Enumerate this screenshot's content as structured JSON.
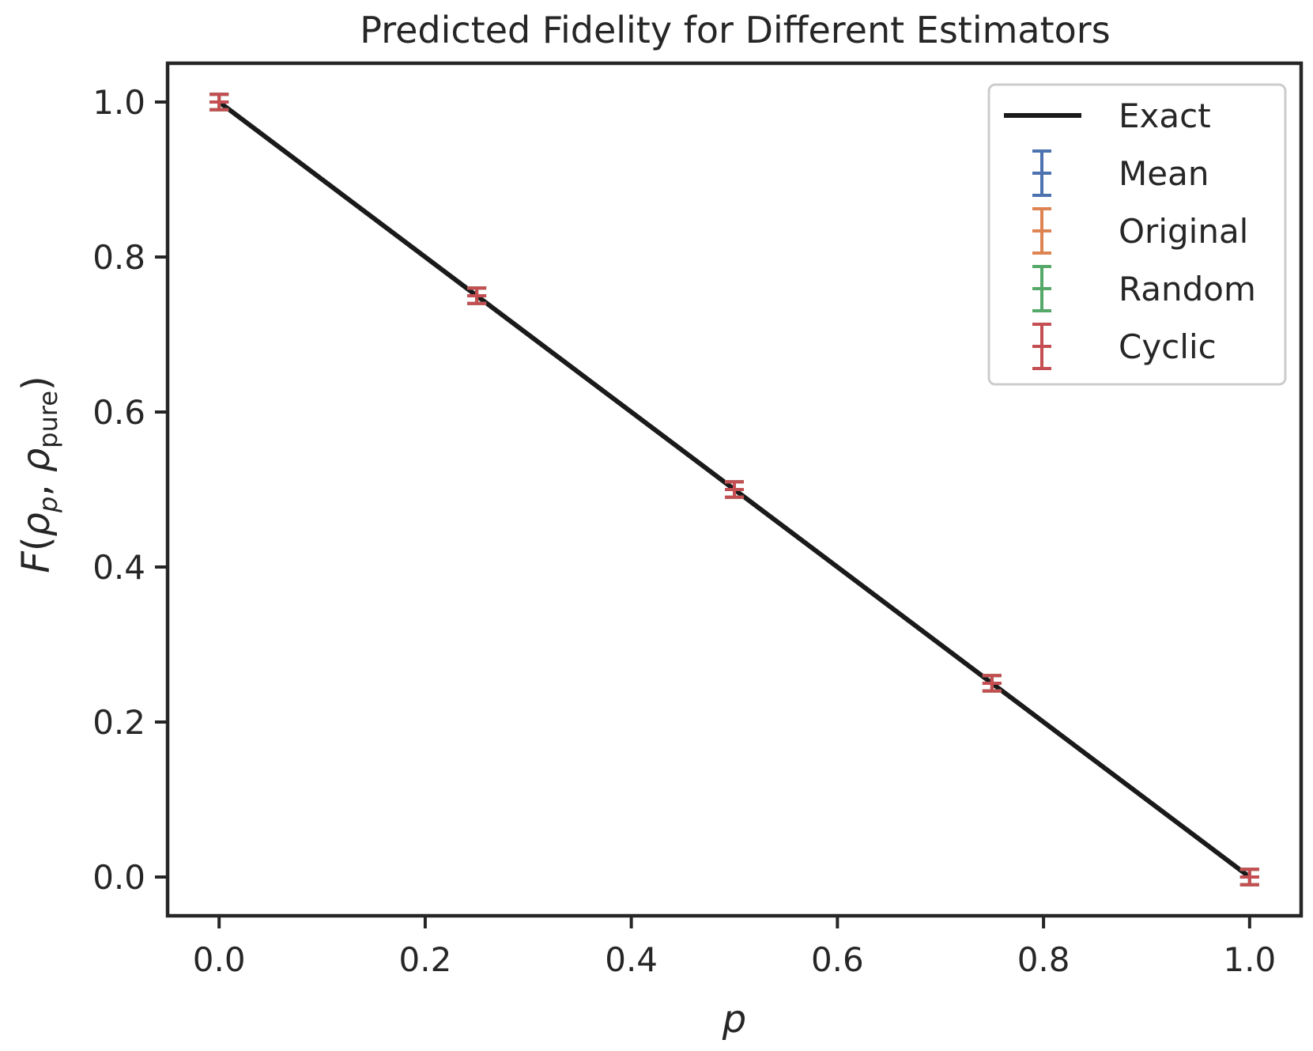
{
  "chart_data": {
    "type": "scatter",
    "title": "Predicted Fidelity for Different Estimators",
    "xlabel": "p",
    "ylabel": {
      "F": "F",
      "open": "(",
      "rho1": "ρ",
      "sub1": "p",
      "comma": ", ",
      "rho2": "ρ",
      "sub2": "pure",
      "close": ")"
    },
    "xlim": [
      -0.05,
      1.05
    ],
    "ylim": [
      -0.05,
      1.05
    ],
    "x_ticks": [
      0.0,
      0.2,
      0.4,
      0.6,
      0.8,
      1.0
    ],
    "x_tick_labels": [
      "0.0",
      "0.2",
      "0.4",
      "0.6",
      "0.8",
      "1.0"
    ],
    "y_ticks": [
      0.0,
      0.2,
      0.4,
      0.6,
      0.8,
      1.0
    ],
    "y_tick_labels": [
      "0.0",
      "0.2",
      "0.4",
      "0.6",
      "0.8",
      "1.0"
    ],
    "grid": false,
    "legend_position": "top-right",
    "exact": {
      "name": "Exact",
      "color": "#1a1a1a",
      "x": [
        0.0,
        1.0
      ],
      "y": [
        1.0,
        0.0
      ]
    },
    "series": [
      {
        "name": "Mean",
        "color": "#4c72b0",
        "x": [
          0.0,
          0.25,
          0.5,
          0.75,
          1.0
        ],
        "y": [
          1.0,
          0.75,
          0.5,
          0.25,
          0.0
        ],
        "err": [
          0.01,
          0.01,
          0.01,
          0.01,
          0.01
        ]
      },
      {
        "name": "Original",
        "color": "#dd8452",
        "x": [
          0.0,
          0.25,
          0.5,
          0.75,
          1.0
        ],
        "y": [
          1.0,
          0.75,
          0.5,
          0.25,
          0.0
        ],
        "err": [
          0.01,
          0.01,
          0.01,
          0.01,
          0.01
        ]
      },
      {
        "name": "Random",
        "color": "#55a868",
        "x": [
          0.0,
          0.25,
          0.5,
          0.75,
          1.0
        ],
        "y": [
          1.0,
          0.75,
          0.5,
          0.25,
          0.0
        ],
        "err": [
          0.01,
          0.01,
          0.01,
          0.01,
          0.01
        ]
      },
      {
        "name": "Cyclic",
        "color": "#c44e52",
        "x": [
          0.0,
          0.25,
          0.5,
          0.75,
          1.0
        ],
        "y": [
          1.0,
          0.75,
          0.5,
          0.25,
          0.0
        ],
        "err": [
          0.01,
          0.01,
          0.01,
          0.01,
          0.01
        ]
      }
    ]
  }
}
